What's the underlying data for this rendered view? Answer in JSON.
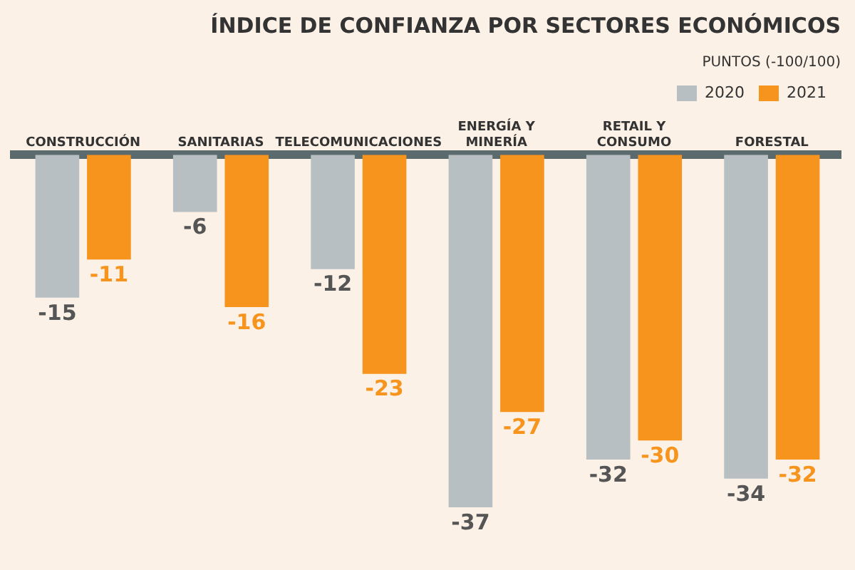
{
  "chart_data": {
    "type": "bar",
    "title": "ÍNDICE DE CONFIANZA POR SECTORES ECONÓMICOS",
    "subtitle": "PUNTOS (-100/100)",
    "categories": [
      "CONSTRUCCIÓN",
      "SANITARIAS",
      "TELECOMUNICACIONES",
      "ENERGÍA Y MINERÍA",
      "RETAIL Y CONSUMO",
      "FORESTAL"
    ],
    "series": [
      {
        "name": "2020",
        "color": "#b8bfc3",
        "values": [
          -15,
          -6,
          -12,
          -37,
          -32,
          -34
        ]
      },
      {
        "name": "2021",
        "color": "#f7941d",
        "values": [
          -11,
          -16,
          -23,
          -27,
          -30,
          -32
        ]
      }
    ],
    "data_labels": true,
    "grid": false,
    "legend": "top right"
  }
}
